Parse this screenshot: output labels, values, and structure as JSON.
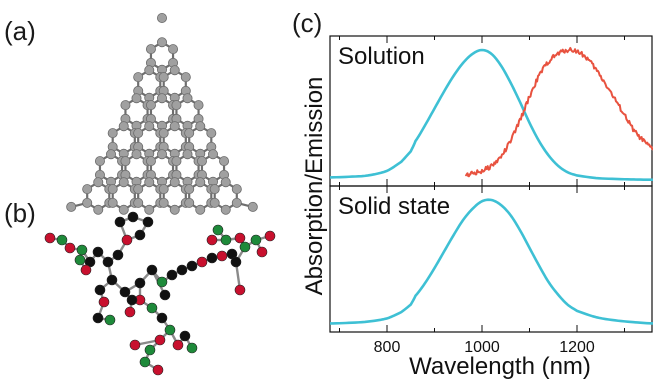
{
  "figure": {
    "panel_a_label": "(a)",
    "panel_b_label": "(b)",
    "panel_c_label": "(c)"
  },
  "molecules": {
    "panel_a": {
      "depiction": "triangular graphene nanoflake, ball-and-stick",
      "atom_color": "#a0a0a0"
    },
    "panel_b": {
      "depiction": "branched molecule, ball-and-stick",
      "atom_colors": [
        "#111111",
        "#c8102e",
        "#1e8a3a"
      ]
    }
  },
  "chart_data": [
    {
      "type": "line",
      "title": "Solution",
      "ylabel": "Absorption/Emission",
      "xlabel": "",
      "xlim": [
        680,
        1360
      ],
      "x_ticks": [
        800,
        1000,
        1200
      ],
      "y_tick_labels": false,
      "series": [
        {
          "color": "#3ec0d4",
          "x": [
            680,
            720,
            760,
            800,
            830,
            850,
            860,
            880,
            900,
            920,
            940,
            960,
            980,
            1000,
            1020,
            1040,
            1060,
            1080,
            1100,
            1120,
            1140,
            1160,
            1180,
            1200,
            1240,
            1280,
            1320,
            1360
          ],
          "y": [
            0.02,
            0.025,
            0.035,
            0.07,
            0.14,
            0.22,
            0.3,
            0.42,
            0.55,
            0.68,
            0.8,
            0.9,
            0.97,
            1.0,
            0.97,
            0.88,
            0.75,
            0.6,
            0.44,
            0.3,
            0.19,
            0.11,
            0.06,
            0.035,
            0.015,
            0.008,
            0.004,
            0.002
          ]
        },
        {
          "color": "#e8523f",
          "x": [
            965,
            980,
            1000,
            1020,
            1040,
            1060,
            1080,
            1100,
            1120,
            1140,
            1160,
            1180,
            1200,
            1220,
            1240,
            1260,
            1280,
            1300,
            1320,
            1340,
            1360
          ],
          "y": [
            0.04,
            0.05,
            0.07,
            0.11,
            0.18,
            0.3,
            0.46,
            0.64,
            0.8,
            0.91,
            0.97,
            1.0,
            0.99,
            0.94,
            0.85,
            0.74,
            0.62,
            0.5,
            0.38,
            0.3,
            0.24
          ]
        }
      ]
    },
    {
      "type": "line",
      "title": "Solid state",
      "xlabel": "Wavelength (nm)",
      "ylabel": "",
      "xlim": [
        680,
        1360
      ],
      "x_ticks": [
        800,
        1000,
        1200
      ],
      "y_tick_labels": false,
      "series": [
        {
          "color": "#3ec0d4",
          "x": [
            680,
            720,
            760,
            800,
            830,
            850,
            860,
            880,
            900,
            920,
            940,
            960,
            980,
            1000,
            1020,
            1040,
            1060,
            1080,
            1100,
            1120,
            1140,
            1160,
            1180,
            1200,
            1240,
            1280,
            1320,
            1360
          ],
          "y": [
            0.02,
            0.025,
            0.035,
            0.06,
            0.11,
            0.17,
            0.24,
            0.34,
            0.46,
            0.59,
            0.72,
            0.84,
            0.93,
            0.99,
            1.0,
            0.96,
            0.88,
            0.76,
            0.62,
            0.48,
            0.35,
            0.25,
            0.17,
            0.12,
            0.07,
            0.045,
            0.03,
            0.02
          ]
        }
      ]
    }
  ]
}
